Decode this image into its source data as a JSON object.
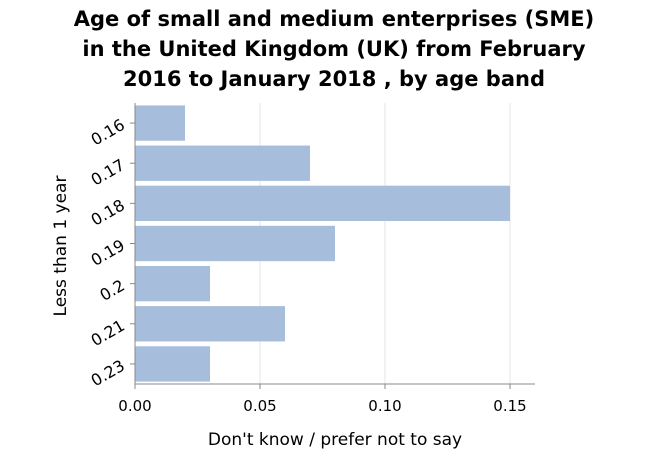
{
  "chart_data": {
    "type": "bar",
    "orientation": "horizontal",
    "title_lines": [
      "Age of small and medium enterprises (SME)",
      "in the United Kingdom (UK) from February",
      "2016 to January 2018 , by age band"
    ],
    "xlabel": "Don't know / prefer not to say",
    "ylabel": "Less than 1 year",
    "categories": [
      "0.16",
      "0.17",
      "0.18",
      "0.19",
      "0.2",
      "0.21",
      "0.23"
    ],
    "values": [
      0.02,
      0.07,
      0.15,
      0.08,
      0.03,
      0.06,
      0.03
    ],
    "xlim": [
      0,
      0.16
    ],
    "xticks": [
      "0.00",
      "0.05",
      "0.10",
      "0.15"
    ],
    "xtick_values": [
      0,
      0.05,
      0.1,
      0.15
    ],
    "grid": true,
    "bar_color": "#a7bddc",
    "grid_color": "#e6e6e6",
    "axis_color": "#888888"
  }
}
